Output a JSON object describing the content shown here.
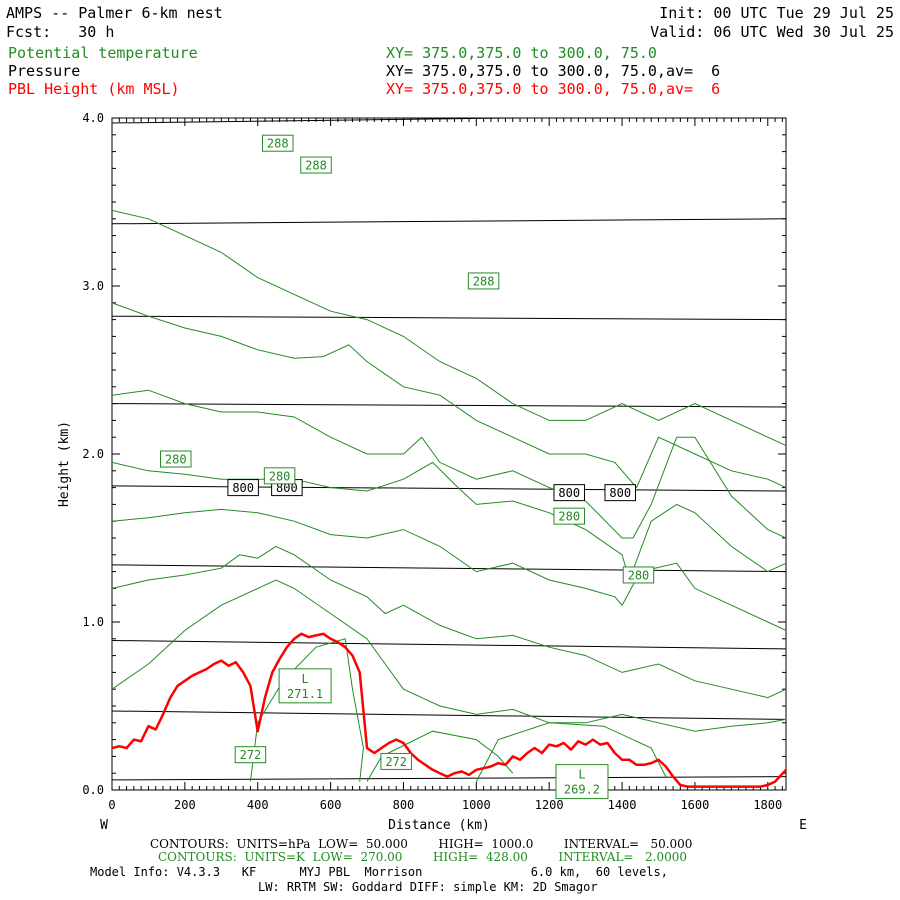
{
  "header": {
    "title": "AMPS -- Palmer 6-km nest",
    "init": "Init: 00 UTC Tue 29 Jul 25",
    "fcst": "Fcst:   30 h",
    "valid": "Valid: 06 UTC Wed 30 Jul 25",
    "fields": [
      {
        "name": "Potential temperature",
        "xy": "XY= 375.0,375.0 to 300.0, 75.0",
        "color": "#228b22"
      },
      {
        "name": "Pressure",
        "xy": "XY= 375.0,375.0 to 300.0, 75.0,av=  6",
        "color": "#000000"
      },
      {
        "name": "PBL Height (km MSL)",
        "xy": "XY= 375.0,375.0 to 300.0, 75.0,av=  6",
        "color": "#ff0000"
      }
    ]
  },
  "footer": {
    "contours_hpa": "CONTOURS:  UNITS=hPa  LOW=  50.000        HIGH=  1000.0        INTERVAL=   50.000",
    "contours_k": "CONTOURS:  UNITS=K  LOW=  270.00        HIGH=  428.00        INTERVAL=   2.0000",
    "model_info": "Model Info: V4.3.3   KF      MYJ PBL  Morrison               6.0 km,  60 levels,",
    "model_info2": "LW: RRTM SW: Goddard DIFF: simple KM: 2D Smagor"
  },
  "chart_data": {
    "type": "line",
    "xlabel": "Distance (km)",
    "ylabel": "Height (km)",
    "xlim": [
      0,
      1850
    ],
    "ylim": [
      0,
      4.0
    ],
    "x_ticks": [
      0,
      200,
      400,
      600,
      800,
      1000,
      1200,
      1400,
      1600,
      1800
    ],
    "y_ticks": [
      0.0,
      1.0,
      2.0,
      3.0,
      4.0
    ],
    "y_tick_labels": [
      "0.0",
      "1.0",
      "2.0",
      "3.0",
      "4.0"
    ],
    "x_end_labels": {
      "left": "W",
      "right": "E"
    },
    "pressure_isobars": {
      "units": "hPa",
      "color": "#000000",
      "lines": [
        [
          [
            0,
            0.06
          ],
          [
            1850,
            0.08
          ]
        ],
        [
          [
            0,
            0.47
          ],
          [
            1850,
            0.42
          ]
        ],
        [
          [
            0,
            0.89
          ],
          [
            1850,
            0.84
          ]
        ],
        [
          [
            0,
            1.34
          ],
          [
            1850,
            1.3
          ]
        ],
        [
          [
            0,
            1.81
          ],
          [
            1850,
            1.78
          ]
        ],
        [
          [
            0,
            2.3
          ],
          [
            1850,
            2.28
          ]
        ],
        [
          [
            0,
            2.82
          ],
          [
            1850,
            2.8
          ]
        ],
        [
          [
            0,
            3.37
          ],
          [
            1850,
            3.4
          ]
        ],
        [
          [
            0,
            3.97
          ],
          [
            1850,
            4.02
          ]
        ]
      ],
      "labels": [
        {
          "text": "800",
          "x": 360,
          "y": 1.8
        },
        {
          "text": "800",
          "x": 480,
          "y": 1.8
        },
        {
          "text": "800",
          "x": 1255,
          "y": 1.77
        },
        {
          "text": "800",
          "x": 1395,
          "y": 1.77
        }
      ]
    },
    "theta_isentropes": {
      "units": "K",
      "color": "#228b22",
      "lines": [
        [
          [
            0,
            3.45
          ],
          [
            100,
            3.4
          ],
          [
            200,
            3.3
          ],
          [
            300,
            3.2
          ],
          [
            400,
            3.05
          ],
          [
            500,
            2.95
          ],
          [
            600,
            2.85
          ],
          [
            700,
            2.8
          ],
          [
            800,
            2.7
          ],
          [
            900,
            2.55
          ],
          [
            1000,
            2.45
          ],
          [
            1100,
            2.3
          ],
          [
            1200,
            2.2
          ],
          [
            1300,
            2.2
          ],
          [
            1400,
            2.3
          ],
          [
            1500,
            2.2
          ],
          [
            1600,
            2.3
          ],
          [
            1700,
            2.2
          ],
          [
            1800,
            2.1
          ],
          [
            1850,
            2.05
          ]
        ],
        [
          [
            0,
            2.9
          ],
          [
            100,
            2.82
          ],
          [
            200,
            2.75
          ],
          [
            300,
            2.7
          ],
          [
            400,
            2.62
          ],
          [
            500,
            2.57
          ],
          [
            580,
            2.58
          ],
          [
            650,
            2.65
          ],
          [
            700,
            2.55
          ],
          [
            800,
            2.4
          ],
          [
            900,
            2.35
          ],
          [
            1000,
            2.2
          ],
          [
            1100,
            2.1
          ],
          [
            1200,
            2.0
          ],
          [
            1300,
            2.0
          ],
          [
            1380,
            1.95
          ],
          [
            1440,
            1.8
          ],
          [
            1500,
            2.1
          ],
          [
            1600,
            2.0
          ],
          [
            1700,
            1.9
          ],
          [
            1800,
            1.85
          ],
          [
            1850,
            1.8
          ]
        ],
        [
          [
            0,
            2.35
          ],
          [
            100,
            2.38
          ],
          [
            200,
            2.3
          ],
          [
            300,
            2.25
          ],
          [
            400,
            2.25
          ],
          [
            500,
            2.22
          ],
          [
            600,
            2.1
          ],
          [
            700,
            2.0
          ],
          [
            800,
            2.0
          ],
          [
            850,
            2.1
          ],
          [
            900,
            1.95
          ],
          [
            1000,
            1.85
          ],
          [
            1100,
            1.9
          ],
          [
            1200,
            1.8
          ],
          [
            1300,
            1.72
          ],
          [
            1400,
            1.5
          ],
          [
            1430,
            1.5
          ],
          [
            1480,
            1.7
          ],
          [
            1550,
            2.1
          ],
          [
            1600,
            2.1
          ],
          [
            1700,
            1.75
          ],
          [
            1800,
            1.55
          ],
          [
            1850,
            1.5
          ]
        ],
        [
          [
            0,
            1.95
          ],
          [
            100,
            1.9
          ],
          [
            200,
            1.88
          ],
          [
            300,
            1.85
          ],
          [
            400,
            1.85
          ],
          [
            500,
            1.85
          ],
          [
            600,
            1.8
          ],
          [
            700,
            1.78
          ],
          [
            800,
            1.85
          ],
          [
            880,
            1.95
          ],
          [
            950,
            1.8
          ],
          [
            1000,
            1.7
          ],
          [
            1100,
            1.72
          ],
          [
            1200,
            1.65
          ],
          [
            1300,
            1.55
          ],
          [
            1400,
            1.4
          ],
          [
            1420,
            1.25
          ],
          [
            1480,
            1.6
          ],
          [
            1550,
            1.7
          ],
          [
            1600,
            1.65
          ],
          [
            1700,
            1.45
          ],
          [
            1800,
            1.3
          ],
          [
            1850,
            1.35
          ]
        ],
        [
          [
            0,
            1.6
          ],
          [
            100,
            1.62
          ],
          [
            200,
            1.65
          ],
          [
            300,
            1.67
          ],
          [
            400,
            1.65
          ],
          [
            500,
            1.6
          ],
          [
            600,
            1.52
          ],
          [
            700,
            1.5
          ],
          [
            800,
            1.55
          ],
          [
            900,
            1.45
          ],
          [
            1000,
            1.3
          ],
          [
            1100,
            1.35
          ],
          [
            1200,
            1.25
          ],
          [
            1300,
            1.2
          ],
          [
            1380,
            1.15
          ],
          [
            1400,
            1.1
          ],
          [
            1450,
            1.3
          ],
          [
            1550,
            1.35
          ],
          [
            1600,
            1.2
          ],
          [
            1700,
            1.1
          ],
          [
            1800,
            1.0
          ],
          [
            1850,
            0.95
          ]
        ],
        [
          [
            0,
            1.2
          ],
          [
            100,
            1.25
          ],
          [
            200,
            1.28
          ],
          [
            300,
            1.32
          ],
          [
            350,
            1.4
          ],
          [
            400,
            1.38
          ],
          [
            450,
            1.45
          ],
          [
            500,
            1.4
          ],
          [
            600,
            1.25
          ],
          [
            700,
            1.15
          ],
          [
            750,
            1.05
          ],
          [
            800,
            1.1
          ],
          [
            900,
            0.98
          ],
          [
            1000,
            0.9
          ],
          [
            1100,
            0.92
          ],
          [
            1200,
            0.85
          ],
          [
            1300,
            0.8
          ],
          [
            1400,
            0.7
          ],
          [
            1500,
            0.75
          ],
          [
            1600,
            0.65
          ],
          [
            1700,
            0.6
          ],
          [
            1800,
            0.55
          ],
          [
            1850,
            0.6
          ]
        ],
        [
          [
            0,
            0.6
          ],
          [
            100,
            0.75
          ],
          [
            200,
            0.95
          ],
          [
            300,
            1.1
          ],
          [
            400,
            1.2
          ],
          [
            450,
            1.25
          ],
          [
            500,
            1.2
          ],
          [
            600,
            1.05
          ],
          [
            700,
            0.9
          ],
          [
            750,
            0.75
          ],
          [
            800,
            0.6
          ],
          [
            850,
            0.55
          ],
          [
            900,
            0.5
          ],
          [
            1000,
            0.45
          ],
          [
            1100,
            0.48
          ],
          [
            1200,
            0.4
          ],
          [
            1300,
            0.4
          ],
          [
            1400,
            0.45
          ],
          [
            1500,
            0.4
          ],
          [
            1600,
            0.35
          ],
          [
            1700,
            0.38
          ],
          [
            1800,
            0.4
          ],
          [
            1850,
            0.42
          ]
        ]
      ],
      "closed_contours": [
        [
          [
            380,
            0.05
          ],
          [
            400,
            0.4
          ],
          [
            470,
            0.65
          ],
          [
            560,
            0.85
          ],
          [
            640,
            0.9
          ],
          [
            660,
            0.6
          ],
          [
            690,
            0.25
          ],
          [
            680,
            0.05
          ]
        ],
        [
          [
            700,
            0.05
          ],
          [
            740,
            0.2
          ],
          [
            880,
            0.35
          ],
          [
            1000,
            0.3
          ],
          [
            1060,
            0.2
          ],
          [
            1100,
            0.1
          ]
        ],
        [
          [
            1000,
            0.05
          ],
          [
            1060,
            0.3
          ],
          [
            1200,
            0.4
          ],
          [
            1350,
            0.38
          ],
          [
            1480,
            0.25
          ],
          [
            1520,
            0.08
          ]
        ]
      ],
      "labels": [
        {
          "text": "288",
          "x": 455,
          "y": 3.85
        },
        {
          "text": "288",
          "x": 560,
          "y": 3.72
        },
        {
          "text": "288",
          "x": 1020,
          "y": 3.03
        },
        {
          "text": "280",
          "x": 175,
          "y": 1.97
        },
        {
          "text": "280",
          "x": 460,
          "y": 1.87
        },
        {
          "text": "280",
          "x": 1255,
          "y": 1.63
        },
        {
          "text": "280",
          "x": 1445,
          "y": 1.28
        },
        {
          "text": "272",
          "x": 380,
          "y": 0.21
        },
        {
          "text": "272",
          "x": 780,
          "y": 0.17
        }
      ],
      "lows": [
        {
          "text": "L",
          "value": "271.1",
          "x": 530,
          "y": 0.62
        },
        {
          "text": "L",
          "value": "269.2",
          "x": 1290,
          "y": 0.05
        }
      ]
    },
    "pbl_height": {
      "name": "PBL Height (km MSL)",
      "color": "#ff0000",
      "x": [
        0,
        20,
        40,
        60,
        80,
        100,
        120,
        140,
        160,
        180,
        200,
        220,
        240,
        260,
        280,
        300,
        320,
        340,
        360,
        380,
        400,
        420,
        440,
        460,
        480,
        500,
        520,
        540,
        560,
        580,
        600,
        620,
        640,
        660,
        680,
        700,
        720,
        740,
        760,
        780,
        800,
        820,
        840,
        860,
        880,
        900,
        920,
        940,
        960,
        980,
        1000,
        1020,
        1040,
        1060,
        1080,
        1100,
        1120,
        1140,
        1160,
        1180,
        1200,
        1220,
        1240,
        1260,
        1280,
        1300,
        1320,
        1340,
        1360,
        1380,
        1400,
        1420,
        1440,
        1460,
        1480,
        1500,
        1520,
        1540,
        1560,
        1580,
        1600,
        1620,
        1640,
        1660,
        1680,
        1700,
        1720,
        1740,
        1760,
        1780,
        1800,
        1820,
        1850
      ],
      "y": [
        0.25,
        0.26,
        0.25,
        0.3,
        0.29,
        0.38,
        0.36,
        0.45,
        0.55,
        0.62,
        0.65,
        0.68,
        0.7,
        0.72,
        0.75,
        0.77,
        0.74,
        0.76,
        0.7,
        0.62,
        0.35,
        0.55,
        0.7,
        0.78,
        0.85,
        0.9,
        0.93,
        0.91,
        0.92,
        0.93,
        0.9,
        0.88,
        0.85,
        0.8,
        0.7,
        0.25,
        0.22,
        0.25,
        0.28,
        0.3,
        0.28,
        0.22,
        0.18,
        0.15,
        0.12,
        0.1,
        0.08,
        0.1,
        0.11,
        0.09,
        0.12,
        0.13,
        0.14,
        0.16,
        0.15,
        0.2,
        0.18,
        0.22,
        0.25,
        0.22,
        0.27,
        0.26,
        0.28,
        0.24,
        0.29,
        0.27,
        0.3,
        0.27,
        0.28,
        0.22,
        0.18,
        0.18,
        0.15,
        0.15,
        0.16,
        0.18,
        0.14,
        0.08,
        0.03,
        0.02,
        0.02,
        0.02,
        0.02,
        0.02,
        0.02,
        0.02,
        0.02,
        0.02,
        0.02,
        0.02,
        0.03,
        0.05,
        0.12
      ]
    }
  }
}
